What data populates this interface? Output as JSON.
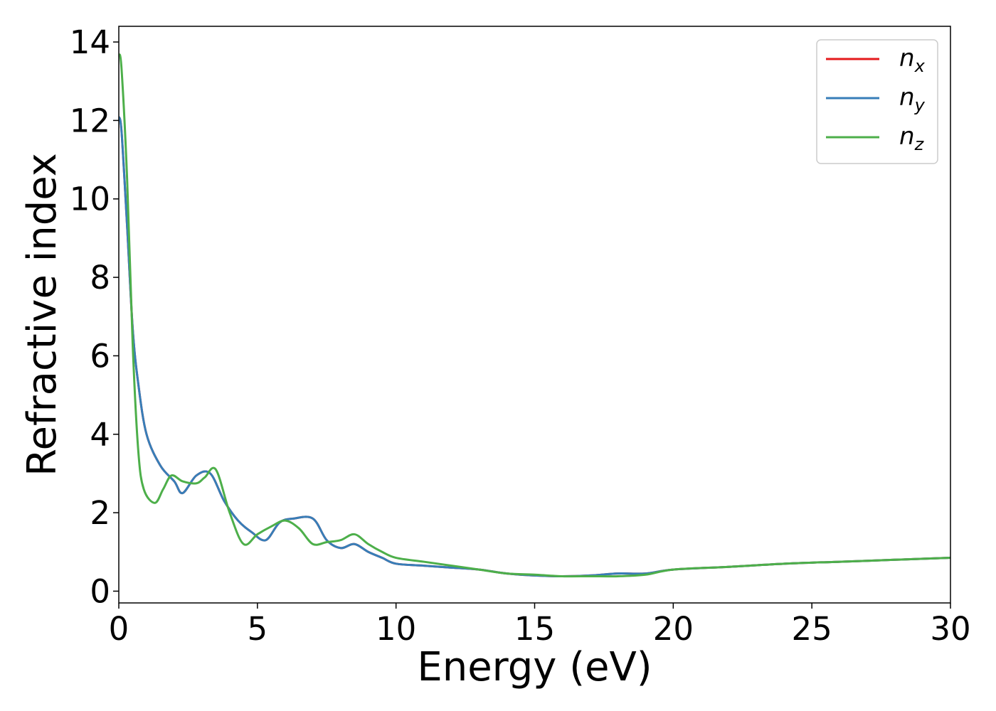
{
  "chart_data": {
    "type": "line",
    "xlabel": "Energy (eV)",
    "ylabel": "Refractive index",
    "xlim": [
      0,
      30
    ],
    "ylim": [
      -0.3,
      14.4
    ],
    "xticks": [
      "0",
      "5",
      "10",
      "15",
      "20",
      "25",
      "30"
    ],
    "yticks": [
      "0",
      "2",
      "4",
      "6",
      "8",
      "10",
      "12",
      "14"
    ],
    "grid": false,
    "legend_position": "top-right",
    "series": [
      {
        "name": "n",
        "subscript": "x",
        "color": "#e41a1c",
        "x": [
          0,
          0.1,
          0.3,
          0.5,
          0.7,
          1.0,
          1.5,
          2.0,
          2.3,
          2.8,
          3.3,
          3.8,
          4.3,
          4.8,
          5.3,
          5.8,
          6.3,
          7.0,
          7.5,
          8.0,
          8.5,
          9.0,
          9.5,
          10.0,
          11.0,
          12.0,
          13.0,
          14.0,
          15.0,
          16.0,
          17.0,
          18.0,
          19.0,
          20.0,
          22.0,
          24.0,
          26.0,
          28.0,
          30.0
        ],
        "y": [
          12.1,
          11.7,
          9.3,
          6.7,
          5.3,
          4.0,
          3.2,
          2.8,
          2.5,
          2.95,
          3.0,
          2.3,
          1.8,
          1.5,
          1.3,
          1.75,
          1.85,
          1.85,
          1.3,
          1.1,
          1.2,
          1.0,
          0.85,
          0.7,
          0.65,
          0.6,
          0.55,
          0.45,
          0.4,
          0.38,
          0.4,
          0.45,
          0.45,
          0.55,
          0.62,
          0.7,
          0.75,
          0.8,
          0.85
        ]
      },
      {
        "name": "n",
        "subscript": "y",
        "color": "#377eb8",
        "x": [
          0,
          0.1,
          0.3,
          0.5,
          0.7,
          1.0,
          1.5,
          2.0,
          2.3,
          2.8,
          3.3,
          3.8,
          4.3,
          4.8,
          5.3,
          5.8,
          6.3,
          7.0,
          7.5,
          8.0,
          8.5,
          9.0,
          9.5,
          10.0,
          11.0,
          12.0,
          13.0,
          14.0,
          15.0,
          16.0,
          17.0,
          18.0,
          19.0,
          20.0,
          22.0,
          24.0,
          26.0,
          28.0,
          30.0
        ],
        "y": [
          12.1,
          11.7,
          9.3,
          6.7,
          5.3,
          4.0,
          3.2,
          2.8,
          2.5,
          2.95,
          3.0,
          2.3,
          1.8,
          1.5,
          1.3,
          1.75,
          1.85,
          1.85,
          1.3,
          1.1,
          1.2,
          1.0,
          0.85,
          0.7,
          0.65,
          0.6,
          0.55,
          0.45,
          0.4,
          0.38,
          0.4,
          0.45,
          0.45,
          0.55,
          0.62,
          0.7,
          0.75,
          0.8,
          0.85
        ]
      },
      {
        "name": "n",
        "subscript": "z",
        "color": "#4daf4a",
        "x": [
          0,
          0.1,
          0.3,
          0.5,
          0.7,
          0.9,
          1.3,
          1.6,
          1.9,
          2.3,
          2.8,
          3.1,
          3.5,
          4.0,
          4.5,
          5.0,
          5.5,
          6.0,
          6.5,
          7.0,
          7.5,
          8.0,
          8.5,
          9.0,
          9.5,
          10.0,
          11.0,
          12.0,
          13.0,
          14.0,
          15.0,
          16.0,
          17.0,
          18.0,
          19.0,
          20.0,
          22.0,
          24.0,
          26.0,
          28.0,
          30.0
        ],
        "y": [
          13.7,
          13.3,
          10.5,
          6.3,
          3.6,
          2.6,
          2.25,
          2.6,
          2.95,
          2.8,
          2.75,
          2.9,
          3.1,
          2.0,
          1.2,
          1.45,
          1.65,
          1.8,
          1.6,
          1.2,
          1.25,
          1.3,
          1.45,
          1.2,
          1.0,
          0.85,
          0.75,
          0.65,
          0.55,
          0.45,
          0.42,
          0.38,
          0.38,
          0.38,
          0.42,
          0.55,
          0.62,
          0.7,
          0.75,
          0.8,
          0.85
        ]
      }
    ]
  }
}
